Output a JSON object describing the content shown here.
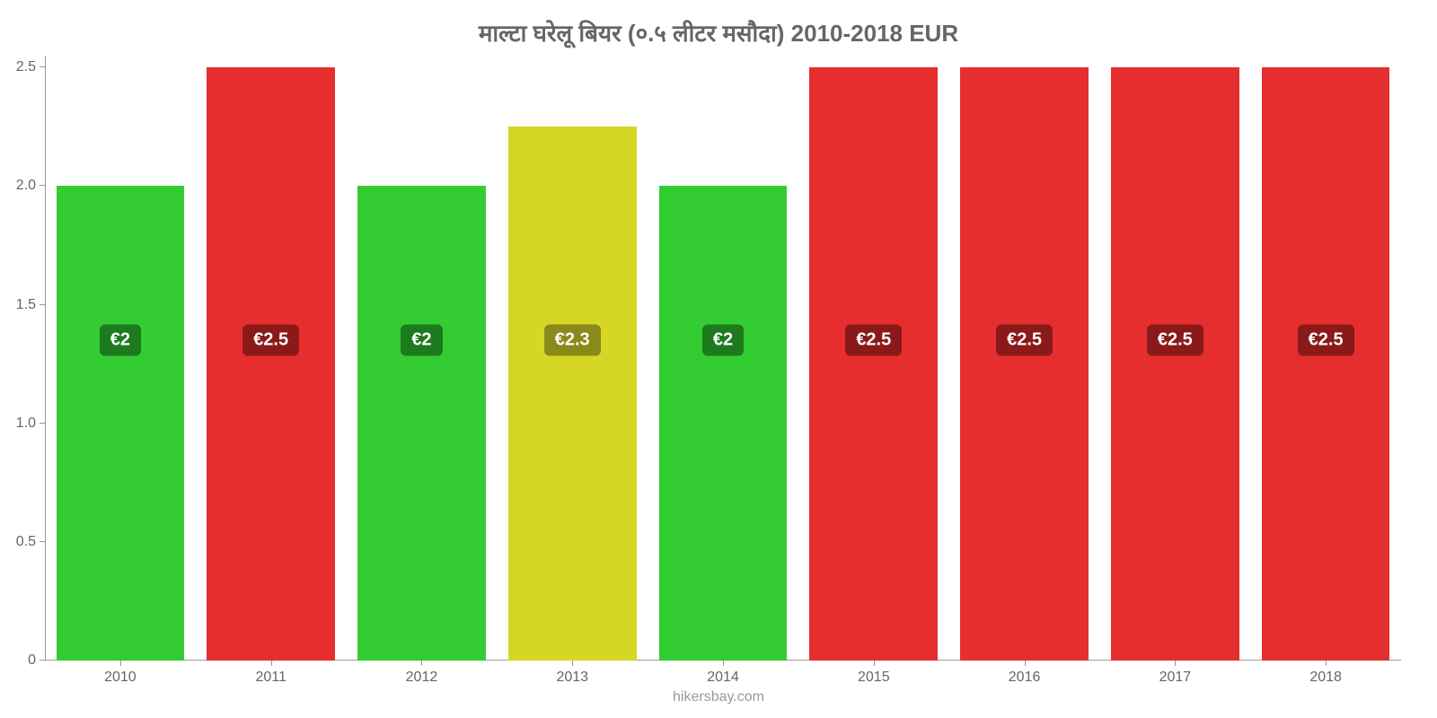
{
  "chart": {
    "type": "bar",
    "title": "माल्टा घरेलू बियर (०.५ लीटर मसौदा) 2010-2018 EUR",
    "title_fontsize": 26,
    "title_color": "#666666",
    "attribution": "hikersbay.com",
    "attribution_fontsize": 16,
    "attribution_color": "#999999",
    "background_color": "#ffffff",
    "x_labels": [
      "2010",
      "2011",
      "2012",
      "2013",
      "2014",
      "2015",
      "2016",
      "2017",
      "2018"
    ],
    "values": [
      2.0,
      2.5,
      2.0,
      2.25,
      2.0,
      2.5,
      2.5,
      2.5,
      2.5
    ],
    "value_labels": [
      "€2",
      "€2.5",
      "€2",
      "€2.3",
      "€2",
      "€2.5",
      "€2.5",
      "€2.5",
      "€2.5"
    ],
    "bar_colors": [
      "#33cc33",
      "#e62e2e",
      "#33cc33",
      "#d6d626",
      "#33cc33",
      "#e62e2e",
      "#e62e2e",
      "#e62e2e",
      "#e62e2e"
    ],
    "badge_colors": [
      "#1e7a1e",
      "#8a1a1a",
      "#1e7a1e",
      "#8a8a1a",
      "#1e7a1e",
      "#8a1a1a",
      "#8a1a1a",
      "#8a1a1a",
      "#8a1a1a"
    ],
    "badge_center_value": 1.35,
    "badge_fontsize": 20,
    "ylim": [
      0,
      2.55
    ],
    "y_ticks": [
      0,
      0.5,
      1.0,
      1.5,
      2.0,
      2.5
    ],
    "y_tick_labels": [
      "0",
      "0.5",
      "1.0",
      "1.5",
      "2.0",
      "2.5"
    ],
    "axis_fontsize": 16,
    "axis_color": "#666666",
    "axis_line_color": "#999999",
    "bar_width_pct": 85
  }
}
